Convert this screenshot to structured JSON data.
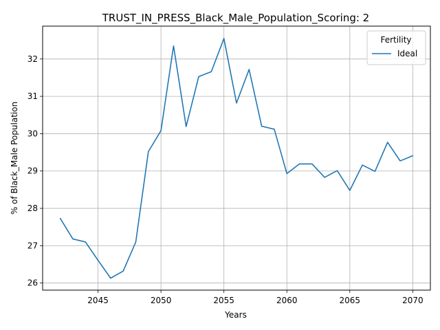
{
  "chart_data": {
    "type": "line",
    "title": "TRUST_IN_PRESS_Black_Male_Population_Scoring: 2",
    "xlabel": "Years",
    "ylabel": "% of Black_Male Population",
    "xlim": [
      2040.6,
      2071.4
    ],
    "ylim": [
      25.81,
      32.88
    ],
    "xticks": [
      2045,
      2050,
      2055,
      2060,
      2065,
      2070
    ],
    "xtick_labels": [
      "2045",
      "2050",
      "2055",
      "2060",
      "2065",
      "2070"
    ],
    "yticks": [
      26,
      27,
      28,
      29,
      30,
      31,
      32
    ],
    "ytick_labels": [
      "26",
      "27",
      "28",
      "29",
      "30",
      "31",
      "32"
    ],
    "grid": true,
    "legend": {
      "title": "Fertility",
      "placement": "top-right"
    },
    "series": [
      {
        "name": "Ideal",
        "color": "#1f77b4",
        "x": [
          2042,
          2043,
          2044,
          2045,
          2046,
          2047,
          2048,
          2049,
          2050,
          2051,
          2052,
          2053,
          2054,
          2055,
          2056,
          2057,
          2058,
          2059,
          2060,
          2061,
          2062,
          2063,
          2064,
          2065,
          2066,
          2067,
          2068,
          2069,
          2070
        ],
        "y": [
          27.73,
          27.18,
          27.1,
          26.61,
          26.13,
          26.32,
          27.1,
          29.52,
          30.08,
          32.35,
          30.19,
          31.53,
          31.66,
          32.55,
          30.82,
          31.72,
          30.2,
          30.12,
          28.93,
          29.19,
          29.19,
          28.83,
          29.01,
          28.48,
          29.16,
          28.99,
          29.77,
          29.27,
          29.41
        ]
      }
    ]
  }
}
